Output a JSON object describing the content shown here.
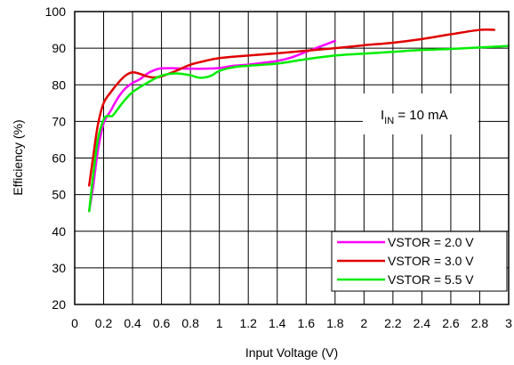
{
  "chart_data": {
    "type": "line",
    "xlabel": "Input Voltage (V)",
    "ylabel": "Efficiency (%)",
    "xlim": [
      0,
      3
    ],
    "ylim": [
      20,
      100
    ],
    "xticks": [
      0,
      0.2,
      0.4,
      0.6,
      0.8,
      1,
      1.2,
      1.4,
      1.6,
      1.8,
      2,
      2.2,
      2.4,
      2.6,
      2.8,
      3
    ],
    "xtick_labels": [
      "0",
      "0.2",
      "0.4",
      "0.6",
      "0.8",
      "1",
      "1.2",
      "1.4",
      "1.6",
      "1.8",
      "2",
      "2.2",
      "2.4",
      "2.6",
      "2.8",
      "3"
    ],
    "yticks": [
      20,
      30,
      40,
      50,
      60,
      70,
      80,
      90,
      100
    ],
    "ytick_labels": [
      "20",
      "30",
      "40",
      "50",
      "60",
      "70",
      "80",
      "90",
      "100"
    ],
    "grid": true,
    "legend_position": "bottom-right",
    "annotation": {
      "main": "I",
      "sub": "IN",
      "rest": " = 10 mA"
    },
    "series": [
      {
        "name": "VSTOR = 2.0 V",
        "color": "#ff00ff",
        "x": [
          0.1,
          0.13,
          0.16,
          0.2,
          0.25,
          0.3,
          0.35,
          0.4,
          0.45,
          0.5,
          0.55,
          0.6,
          0.7,
          0.8,
          0.9,
          1.0,
          1.1,
          1.2,
          1.3,
          1.4,
          1.5,
          1.6,
          1.7,
          1.8
        ],
        "y": [
          45.5,
          53,
          62,
          69.5,
          73,
          76.5,
          79,
          80.5,
          81.5,
          83,
          84,
          84.5,
          84.5,
          84.4,
          84.4,
          84.6,
          85.2,
          85.5,
          86,
          86.5,
          87.5,
          89,
          90.5,
          92
        ]
      },
      {
        "name": "VSTOR = 3.0 V",
        "color": "#e00000",
        "x": [
          0.1,
          0.13,
          0.16,
          0.2,
          0.25,
          0.3,
          0.35,
          0.4,
          0.45,
          0.5,
          0.55,
          0.6,
          0.7,
          0.8,
          0.9,
          1.0,
          1.2,
          1.4,
          1.6,
          1.8,
          2.0,
          2.2,
          2.4,
          2.6,
          2.8,
          2.9
        ],
        "y": [
          52.5,
          61,
          69,
          75,
          78,
          80.5,
          82.5,
          83.4,
          83,
          82.3,
          82,
          82.3,
          83.8,
          85.5,
          86.5,
          87.3,
          88,
          88.6,
          89.3,
          90,
          90.8,
          91.5,
          92.5,
          93.8,
          95,
          95
        ]
      },
      {
        "name": "VSTOR = 5.5 V",
        "color": "#00ee00",
        "x": [
          0.1,
          0.13,
          0.16,
          0.2,
          0.23,
          0.26,
          0.3,
          0.35,
          0.4,
          0.5,
          0.6,
          0.7,
          0.8,
          0.85,
          0.9,
          0.95,
          1.0,
          1.1,
          1.2,
          1.4,
          1.6,
          1.8,
          2.0,
          2.2,
          2.4,
          2.6,
          2.8,
          3.0
        ],
        "y": [
          45.5,
          56,
          65,
          70.5,
          71.5,
          71.5,
          73.5,
          76,
          78,
          80.5,
          82.5,
          83.1,
          82.6,
          82,
          82,
          82.6,
          83.8,
          84.8,
          85.2,
          85.8,
          87,
          88,
          88.5,
          89,
          89.5,
          89.8,
          90.2,
          90.6
        ]
      }
    ]
  }
}
